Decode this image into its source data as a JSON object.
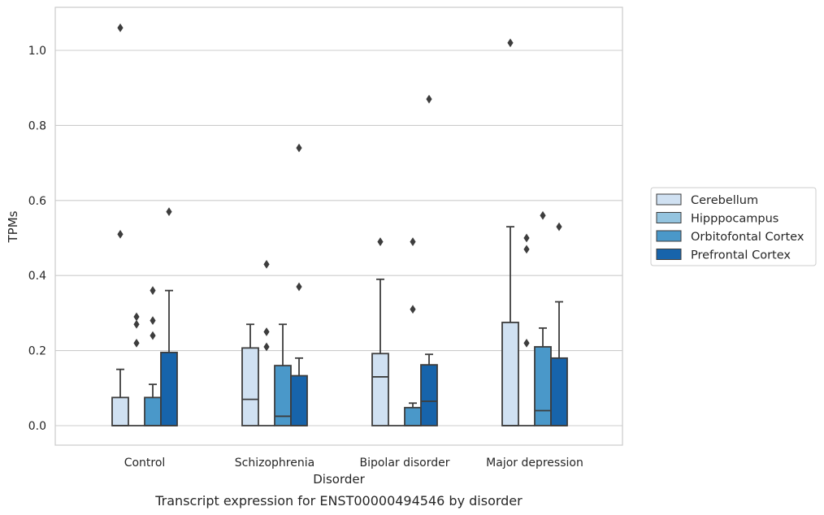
{
  "caption": "Transcript expression for ENST00000494546 by disorder",
  "chart_data": {
    "type": "box",
    "title": "",
    "xlabel": "Disorder",
    "ylabel": "TPMs",
    "ylim": [
      -0.05,
      1.12
    ],
    "yticks": [
      0.0,
      0.2,
      0.4,
      0.6,
      0.8,
      1.0
    ],
    "ytick_labels": [
      "0.0",
      "0.2",
      "0.4",
      "0.6",
      "0.8",
      "1.0"
    ],
    "grid": "horizontal",
    "legend_position": "right",
    "categories": [
      "Control",
      "Schizophrenia",
      "Bipolar disorder",
      "Major depression"
    ],
    "series": [
      {
        "name": "Cerebellum",
        "color": "#d0e1f2",
        "boxes": [
          {
            "q1": 0.0,
            "median": 0.0,
            "q3": 0.075,
            "whislo": 0.0,
            "whishi": 0.15,
            "fliers": [
              0.51,
              1.06
            ]
          },
          {
            "q1": 0.0,
            "median": 0.07,
            "q3": 0.207,
            "whislo": 0.0,
            "whishi": 0.27,
            "fliers": []
          },
          {
            "q1": 0.0,
            "median": 0.13,
            "q3": 0.192,
            "whislo": 0.0,
            "whishi": 0.39,
            "fliers": [
              0.49
            ]
          },
          {
            "q1": 0.0,
            "median": 0.0,
            "q3": 0.275,
            "whislo": 0.0,
            "whishi": 0.53,
            "fliers": [
              1.02
            ]
          }
        ]
      },
      {
        "name": "Hipppocampus",
        "color": "#94c4df",
        "boxes": [
          {
            "q1": 0.0,
            "median": 0.0,
            "q3": 0.0,
            "whislo": 0.0,
            "whishi": 0.0,
            "fliers": [
              0.22,
              0.27,
              0.29
            ]
          },
          {
            "q1": 0.0,
            "median": 0.0,
            "q3": 0.0,
            "whislo": 0.0,
            "whishi": 0.0,
            "fliers": [
              0.21,
              0.25,
              0.43
            ]
          },
          {
            "q1": 0.0,
            "median": 0.0,
            "q3": 0.0,
            "whislo": 0.0,
            "whishi": 0.0,
            "fliers": []
          },
          {
            "q1": 0.0,
            "median": 0.0,
            "q3": 0.0,
            "whislo": 0.0,
            "whishi": 0.0,
            "fliers": [
              0.22,
              0.47,
              0.5
            ]
          }
        ]
      },
      {
        "name": "Orbitofontal Cortex",
        "color": "#4a98c9",
        "boxes": [
          {
            "q1": 0.0,
            "median": 0.0,
            "q3": 0.075,
            "whislo": 0.0,
            "whishi": 0.11,
            "fliers": [
              0.24,
              0.28,
              0.36
            ]
          },
          {
            "q1": 0.0,
            "median": 0.025,
            "q3": 0.16,
            "whislo": 0.0,
            "whishi": 0.27,
            "fliers": []
          },
          {
            "q1": 0.0,
            "median": 0.0,
            "q3": 0.048,
            "whislo": 0.0,
            "whishi": 0.06,
            "fliers": [
              0.31,
              0.49
            ]
          },
          {
            "q1": 0.0,
            "median": 0.04,
            "q3": 0.21,
            "whislo": 0.0,
            "whishi": 0.26,
            "fliers": [
              0.56
            ]
          }
        ]
      },
      {
        "name": "Prefrontal Cortex",
        "color": "#1764ab",
        "boxes": [
          {
            "q1": 0.0,
            "median": 0.0,
            "q3": 0.195,
            "whislo": 0.0,
            "whishi": 0.36,
            "fliers": [
              0.57
            ]
          },
          {
            "q1": 0.0,
            "median": 0.0,
            "q3": 0.133,
            "whislo": 0.0,
            "whishi": 0.18,
            "fliers": [
              0.37,
              0.74
            ]
          },
          {
            "q1": 0.0,
            "median": 0.065,
            "q3": 0.162,
            "whislo": 0.0,
            "whishi": 0.19,
            "fliers": [
              0.87
            ]
          },
          {
            "q1": 0.0,
            "median": 0.0,
            "q3": 0.18,
            "whislo": 0.0,
            "whishi": 0.33,
            "fliers": [
              0.53
            ]
          }
        ]
      }
    ]
  }
}
